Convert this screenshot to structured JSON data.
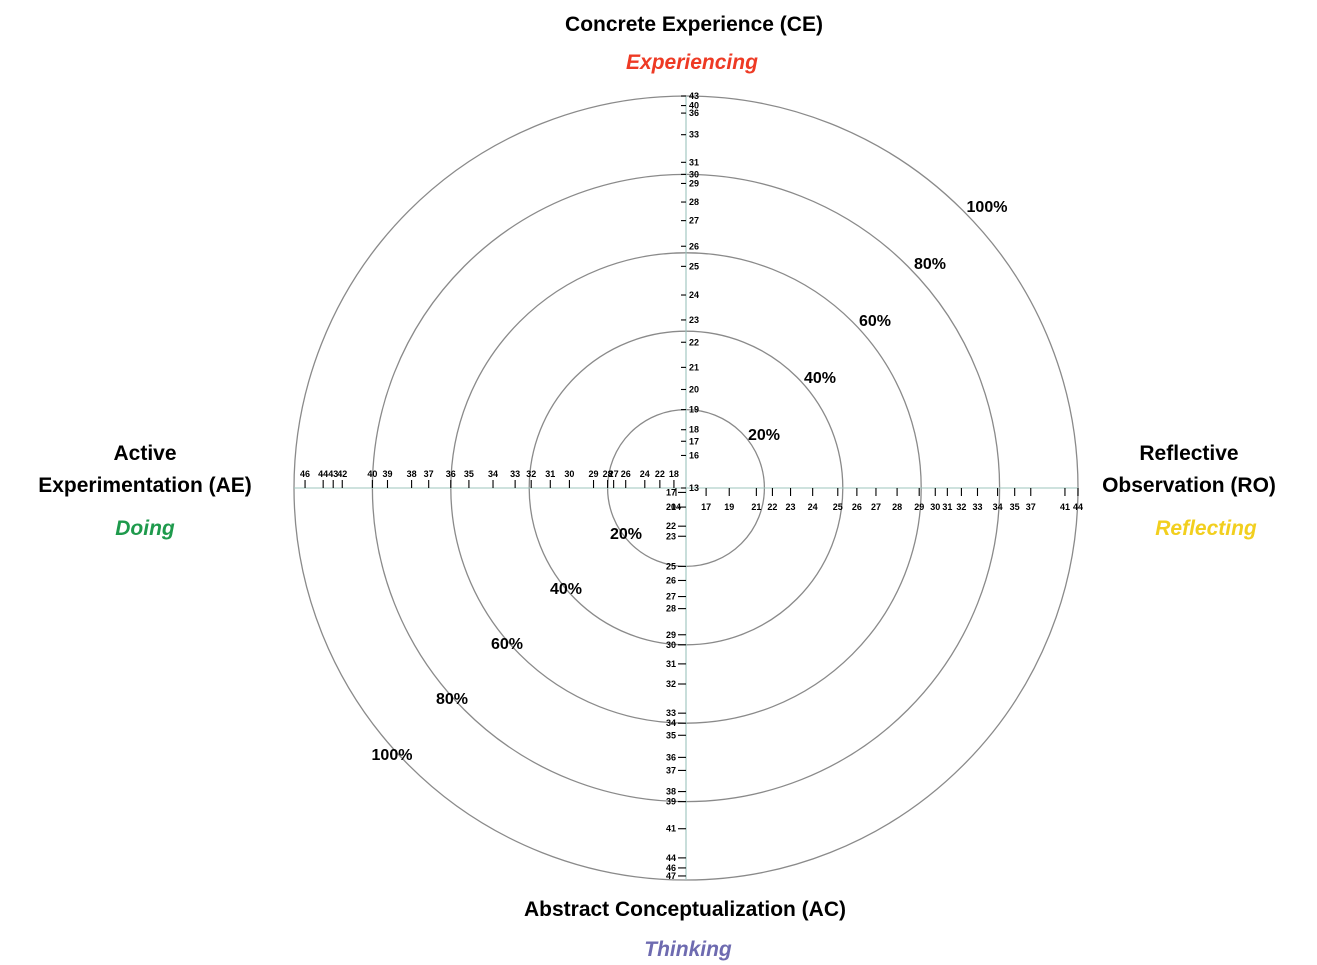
{
  "poles": {
    "ce": {
      "title": "Concrete Experience (CE)",
      "mode": "Experiencing",
      "mode_color": "#ee3a24"
    },
    "ro": {
      "title_lines": [
        "Reflective",
        "Observation (RO)"
      ],
      "mode": "Reflecting",
      "mode_color": "#f2cf1e"
    },
    "ac": {
      "title": "Abstract Conceptualization (AC)",
      "mode": "Thinking",
      "mode_color": "#6e6bb0"
    },
    "ae": {
      "title_lines": [
        "Active",
        "Experimentation (AE)"
      ],
      "mode": "Doing",
      "mode_color": "#1e9a4c"
    }
  },
  "rings": [
    "20%",
    "40%",
    "60%",
    "80%",
    "100%"
  ],
  "scales": {
    "ce": [
      {
        "v": "13",
        "f": 0.0
      },
      {
        "v": "16",
        "f": 0.083
      },
      {
        "v": "17",
        "f": 0.1192
      },
      {
        "v": "18",
        "f": 0.1487
      },
      {
        "v": "19",
        "f": 0.2
      },
      {
        "v": "20",
        "f": 0.2513
      },
      {
        "v": "21",
        "f": 0.3077
      },
      {
        "v": "22",
        "f": 0.3718
      },
      {
        "v": "23",
        "f": 0.4287
      },
      {
        "v": "24",
        "f": 0.4923
      },
      {
        "v": "25",
        "f": 0.5654
      },
      {
        "v": "26",
        "f": 0.6167
      },
      {
        "v": "27",
        "f": 0.6821
      },
      {
        "v": "28",
        "f": 0.7295
      },
      {
        "v": "29",
        "f": 0.7769
      },
      {
        "v": "30",
        "f": 0.8
      },
      {
        "v": "31",
        "f": 0.8308
      },
      {
        "v": "33",
        "f": 0.9013
      },
      {
        "v": "36",
        "f": 0.9564
      },
      {
        "v": "40",
        "f": 0.9756
      },
      {
        "v": "43",
        "f": 1.0
      }
    ],
    "ro": [
      {
        "v": "14",
        "f": -0.0256
      },
      {
        "v": "17",
        "f": 0.0513
      },
      {
        "v": "19",
        "f": 0.1103
      },
      {
        "v": "21",
        "f": 0.1795
      },
      {
        "v": "22",
        "f": 0.2205
      },
      {
        "v": "23",
        "f": 0.2667
      },
      {
        "v": "24",
        "f": 0.3231
      },
      {
        "v": "25",
        "f": 0.3872
      },
      {
        "v": "26",
        "f": 0.4359
      },
      {
        "v": "27",
        "f": 0.4846
      },
      {
        "v": "28",
        "f": 0.5385
      },
      {
        "v": "29",
        "f": 0.5949
      },
      {
        "v": "30",
        "f": 0.6359
      },
      {
        "v": "31",
        "f": 0.6667
      },
      {
        "v": "32",
        "f": 0.7026
      },
      {
        "v": "33",
        "f": 0.7436
      },
      {
        "v": "34",
        "f": 0.7949
      },
      {
        "v": "35",
        "f": 0.8385
      },
      {
        "v": "37",
        "f": 0.8795
      },
      {
        "v": "41",
        "f": 0.9667
      },
      {
        "v": "44",
        "f": 1.0
      }
    ],
    "ac": [
      {
        "v": "17",
        "f": 0.0113
      },
      {
        "v": "20",
        "f": 0.0487
      },
      {
        "v": "22",
        "f": 0.0974
      },
      {
        "v": "23",
        "f": 0.1231
      },
      {
        "v": "25",
        "f": 0.2
      },
      {
        "v": "26",
        "f": 0.2359
      },
      {
        "v": "27",
        "f": 0.2769
      },
      {
        "v": "28",
        "f": 0.3077
      },
      {
        "v": "29",
        "f": 0.3744
      },
      {
        "v": "30",
        "f": 0.4
      },
      {
        "v": "31",
        "f": 0.4487
      },
      {
        "v": "32",
        "f": 0.5
      },
      {
        "v": "33",
        "f": 0.5744
      },
      {
        "v": "34",
        "f": 0.6
      },
      {
        "v": "35",
        "f": 0.6308
      },
      {
        "v": "36",
        "f": 0.6872
      },
      {
        "v": "37",
        "f": 0.7205
      },
      {
        "v": "38",
        "f": 0.7744
      },
      {
        "v": "39",
        "f": 0.8
      },
      {
        "v": "41",
        "f": 0.8692
      },
      {
        "v": "44",
        "f": 0.9436
      },
      {
        "v": "46",
        "f": 0.9692
      },
      {
        "v": "47",
        "f": 0.9897
      }
    ],
    "ae": [
      {
        "v": "18",
        "f": 0.0308
      },
      {
        "v": "22",
        "f": 0.0667
      },
      {
        "v": "24",
        "f": 0.1051
      },
      {
        "v": "26",
        "f": 0.1538
      },
      {
        "v": "27",
        "f": 0.1846
      },
      {
        "v": "28",
        "f": 0.2
      },
      {
        "v": "29",
        "f": 0.2359
      },
      {
        "v": "30",
        "f": 0.2974
      },
      {
        "v": "31",
        "f": 0.3462
      },
      {
        "v": "32",
        "f": 0.3949
      },
      {
        "v": "33",
        "f": 0.4359
      },
      {
        "v": "34",
        "f": 0.4923
      },
      {
        "v": "35",
        "f": 0.5538
      },
      {
        "v": "36",
        "f": 0.6
      },
      {
        "v": "37",
        "f": 0.6564
      },
      {
        "v": "38",
        "f": 0.7
      },
      {
        "v": "39",
        "f": 0.7615
      },
      {
        "v": "40",
        "f": 0.8
      },
      {
        "v": "42",
        "f": 0.8769
      },
      {
        "v": "43",
        "f": 0.9
      },
      {
        "v": "44",
        "f": 0.9256
      },
      {
        "v": "46",
        "f": 0.9718
      }
    ]
  }
}
